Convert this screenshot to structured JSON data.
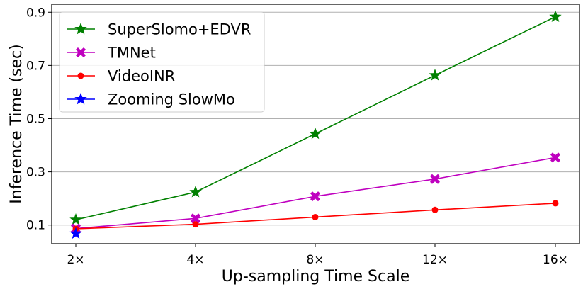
{
  "chart_data": {
    "type": "line",
    "title": "",
    "xlabel": "Up-sampling Time Scale",
    "ylabel": "Inference Time (sec)",
    "categories": [
      "2×",
      "4×",
      "8×",
      "12×",
      "16×"
    ],
    "ylim": [
      0.03,
      0.93
    ],
    "yticks": [
      0.1,
      0.3,
      0.5,
      0.7,
      0.9
    ],
    "ytick_labels": [
      "0.1",
      "0.3",
      "0.5",
      "0.7",
      "0.9"
    ],
    "grid": "horizontal",
    "legend_position": "top-left",
    "series": [
      {
        "name": "SuperSlomo+EDVR",
        "color": "#008000",
        "marker": "star",
        "values": [
          0.12,
          0.224,
          0.443,
          0.663,
          0.883
        ]
      },
      {
        "name": "TMNet",
        "color": "#bf00bf",
        "marker": "x-filled",
        "values": [
          0.087,
          0.125,
          0.208,
          0.273,
          0.354
        ]
      },
      {
        "name": "VideoINR",
        "color": "#ff0000",
        "marker": "circle",
        "values": [
          0.086,
          0.103,
          0.13,
          0.157,
          0.182
        ]
      },
      {
        "name": "Zooming SlowMo",
        "color": "#0000ff",
        "marker": "star",
        "values": [
          0.068,
          null,
          null,
          null,
          null
        ]
      }
    ]
  }
}
